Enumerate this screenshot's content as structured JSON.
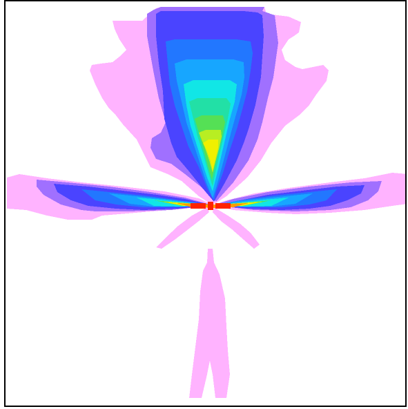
{
  "image": {
    "description_kind": "false-color intensity map (cross / ankh-shaped radiation pattern)",
    "colors": {
      "background": "#ffffff",
      "frame": "#000000",
      "level_1_pink": "#ffb3ff",
      "level_2_lavender": "#a070ff",
      "level_3_blue": "#4a44ff",
      "level_4_mid_blue": "#2277ff",
      "level_5_sky": "#17a6ff",
      "level_6_cyan": "#11e6e6",
      "level_7_teal": "#22e0a6",
      "level_8_green": "#55e055",
      "level_9_yellow_green": "#b8ee22",
      "level_10_yellow": "#f0f000",
      "level_11_orange": "#ff9a00",
      "level_12_red": "#ff2200"
    }
  }
}
